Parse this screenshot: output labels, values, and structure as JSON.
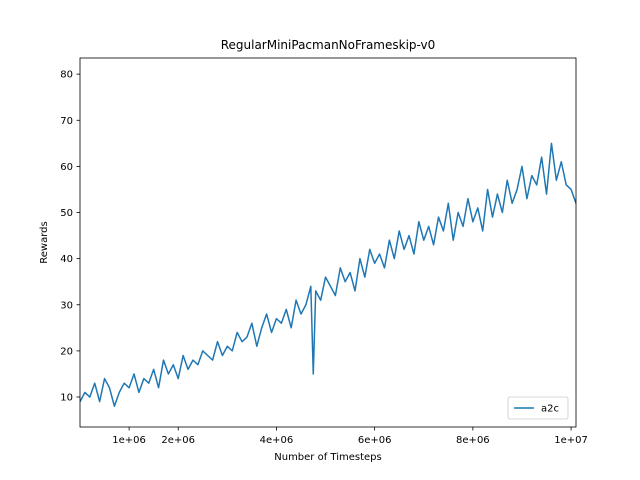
{
  "chart_data": {
    "type": "line",
    "title": "RegularMiniPacmanNoFrameskip-v0",
    "xlabel": "Number of Timesteps",
    "ylabel": "Rewards",
    "xlim": [
      0,
      10100000
    ],
    "ylim": [
      3.5,
      83.5
    ],
    "x_ticks": [
      {
        "value": 1000000,
        "label": "1e+06"
      },
      {
        "value": 2000000,
        "label": "2e+06"
      },
      {
        "value": 4000000,
        "label": "4e+06"
      },
      {
        "value": 6000000,
        "label": "6e+06"
      },
      {
        "value": 8000000,
        "label": "8e+06"
      },
      {
        "value": 10000000,
        "label": "1e+07"
      }
    ],
    "y_ticks": [
      {
        "value": 10,
        "label": "10"
      },
      {
        "value": 20,
        "label": "20"
      },
      {
        "value": 30,
        "label": "30"
      },
      {
        "value": 40,
        "label": "40"
      },
      {
        "value": 50,
        "label": "50"
      },
      {
        "value": 60,
        "label": "60"
      },
      {
        "value": 70,
        "label": "70"
      },
      {
        "value": 80,
        "label": "80"
      }
    ],
    "grid": false,
    "legend_position": "lower right",
    "series": [
      {
        "name": "a2c",
        "color": "#1f77b4",
        "x": [
          0,
          100000,
          200000,
          300000,
          400000,
          500000,
          600000,
          700000,
          800000,
          900000,
          1000000,
          1100000,
          1200000,
          1300000,
          1400000,
          1500000,
          1600000,
          1700000,
          1800000,
          1900000,
          2000000,
          2100000,
          2200000,
          2300000,
          2400000,
          2500000,
          2600000,
          2700000,
          2800000,
          2900000,
          3000000,
          3100000,
          3200000,
          3300000,
          3400000,
          3500000,
          3600000,
          3700000,
          3800000,
          3900000,
          4000000,
          4100000,
          4200000,
          4300000,
          4400000,
          4500000,
          4600000,
          4700000,
          4750000,
          4800000,
          4900000,
          5000000,
          5100000,
          5200000,
          5300000,
          5400000,
          5500000,
          5600000,
          5700000,
          5800000,
          5900000,
          6000000,
          6100000,
          6200000,
          6300000,
          6400000,
          6500000,
          6600000,
          6700000,
          6800000,
          6900000,
          7000000,
          7100000,
          7200000,
          7300000,
          7400000,
          7500000,
          7600000,
          7700000,
          7800000,
          7900000,
          8000000,
          8100000,
          8200000,
          8300000,
          8400000,
          8500000,
          8600000,
          8700000,
          8800000,
          8900000,
          9000000,
          9100000,
          9200000,
          9300000,
          9400000,
          9500000,
          9600000,
          9700000,
          9800000,
          9900000,
          10000000,
          10100000
        ],
        "values": [
          9,
          11,
          10,
          13,
          9,
          14,
          12,
          8,
          11,
          13,
          12,
          15,
          11,
          14,
          13,
          16,
          12,
          18,
          15,
          17,
          14,
          19,
          16,
          18,
          17,
          20,
          19,
          18,
          22,
          19,
          21,
          20,
          24,
          22,
          23,
          26,
          21,
          25,
          28,
          24,
          27,
          26,
          29,
          25,
          31,
          28,
          30,
          34,
          15,
          33,
          31,
          36,
          34,
          32,
          38,
          35,
          37,
          33,
          40,
          36,
          42,
          39,
          41,
          38,
          44,
          40,
          46,
          42,
          45,
          41,
          48,
          44,
          47,
          43,
          49,
          46,
          52,
          44,
          50,
          47,
          53,
          48,
          51,
          46,
          55,
          49,
          54,
          50,
          57,
          52,
          55,
          60,
          53,
          58,
          56,
          62,
          54,
          65,
          57,
          61,
          56,
          55,
          52
        ]
      }
    ]
  }
}
